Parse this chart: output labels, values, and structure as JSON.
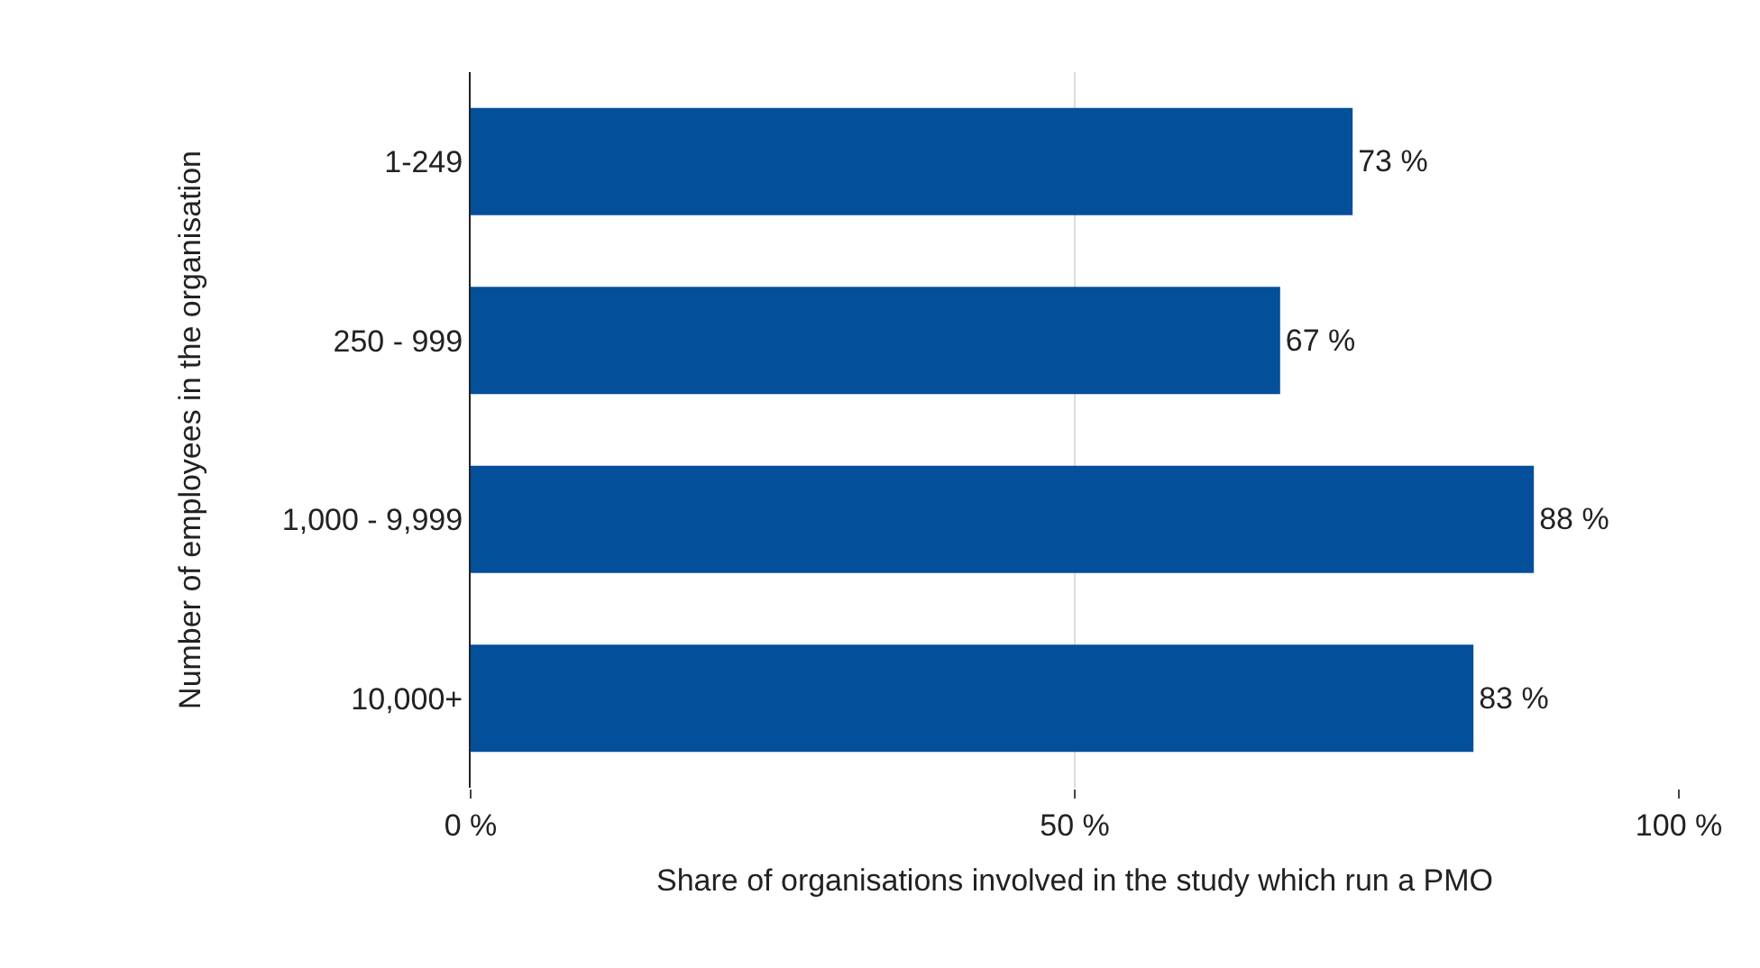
{
  "chart_data": {
    "type": "bar",
    "orientation": "horizontal",
    "categories": [
      "1-249",
      "250 - 999",
      "1,000 - 9,999",
      "10,000+"
    ],
    "values": [
      73,
      67,
      88,
      83
    ],
    "value_labels": [
      "73 %",
      "67 %",
      "88 %",
      "83 %"
    ],
    "color": "#044f9a",
    "xlim": [
      0,
      100
    ],
    "xticks": [
      {
        "value": 0,
        "label": "0 %"
      },
      {
        "value": 50,
        "label": "50 %"
      },
      {
        "value": 100,
        "label": "100 %"
      }
    ],
    "xlabel": "Share of organisations involved in the study which run a PMO",
    "ylabel": "Number of employees in the organisation",
    "grid": "x",
    "legend": false
  }
}
